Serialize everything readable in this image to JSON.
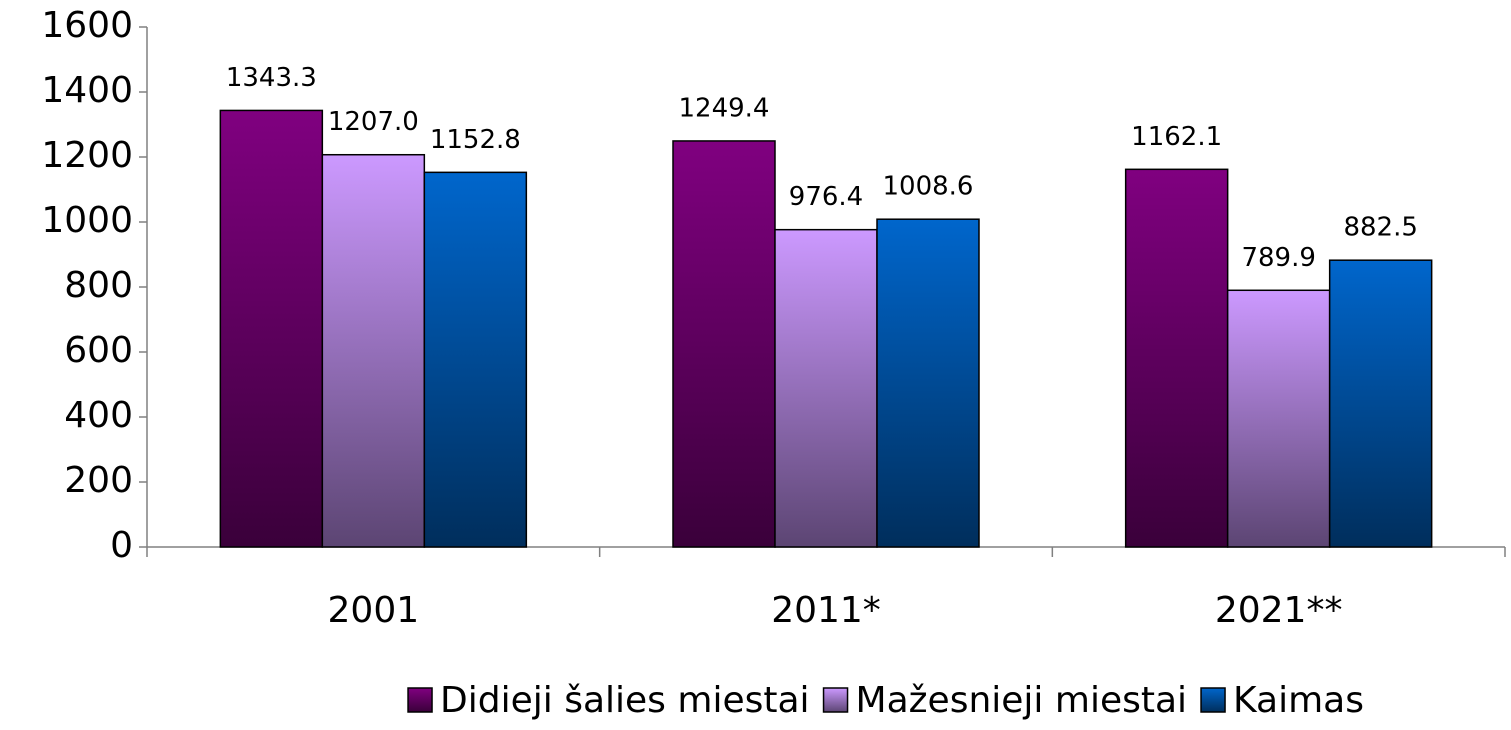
{
  "chart_data": {
    "type": "bar",
    "categories": [
      "2001",
      "2011*",
      "2021**"
    ],
    "series": [
      {
        "name": "Didieji šalies miestai",
        "color": "#800080",
        "values": [
          1343.3,
          1249.4,
          1162.1
        ],
        "value_labels": [
          "1343.3",
          "1249.4",
          "1162.1"
        ]
      },
      {
        "name": "Mažesnieji miestai",
        "color": "#cc99ff",
        "values": [
          1207.0,
          976.4,
          789.9
        ],
        "value_labels": [
          "1207.0",
          "976.4",
          "789.9"
        ]
      },
      {
        "name": "Kaimas",
        "color": "#0066cc",
        "values": [
          1152.8,
          1008.6,
          882.5
        ],
        "value_labels": [
          "1152.8",
          "1008.6",
          "882.5"
        ]
      }
    ],
    "ylim": [
      0,
      1600
    ],
    "yticks": [
      0,
      200,
      400,
      600,
      800,
      1000,
      1200,
      1400,
      1600
    ],
    "legend": "bottom"
  }
}
